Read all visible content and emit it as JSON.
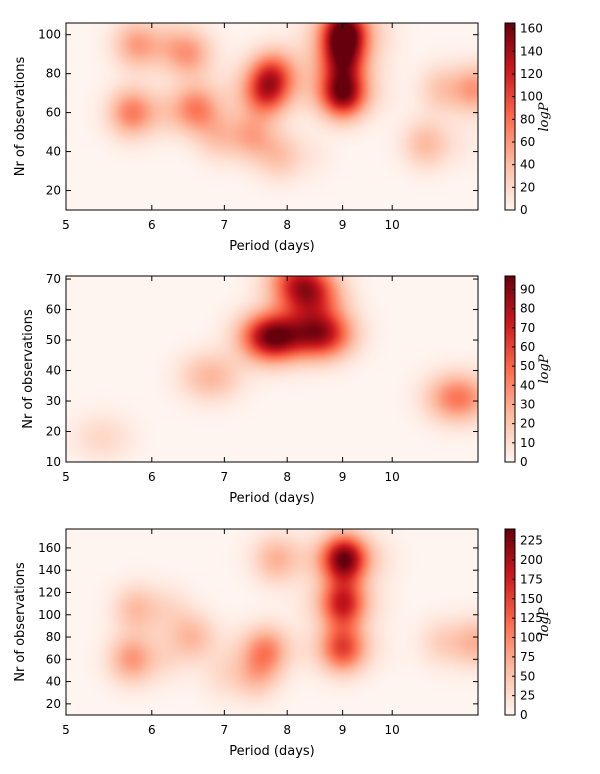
{
  "chart_data": [
    {
      "type": "heatmap",
      "title": "",
      "xlabel": "Period (days)",
      "ylabel": "Nr of observations",
      "x_scale": "log",
      "xlim": [
        5,
        12
      ],
      "ylim": [
        10,
        106
      ],
      "xticks": [
        5,
        6,
        7,
        8,
        9,
        10
      ],
      "yticks": [
        20,
        40,
        60,
        80,
        100
      ],
      "colorbar": {
        "label": "logP",
        "ticks": [
          0,
          20,
          40,
          60,
          80,
          100,
          120,
          140,
          160
        ],
        "range": [
          0,
          165
        ]
      },
      "colormap": [
        "#fff5f0",
        "#fcbba1",
        "#fb6a4a",
        "#cb181d",
        "#67000d"
      ],
      "hotspots": [
        {
          "period": 9.05,
          "obs": 102,
          "value": 165
        },
        {
          "period": 9.0,
          "obs": 70,
          "value": 160
        },
        {
          "period": 9.0,
          "obs": 88,
          "value": 120
        },
        {
          "period": 7.6,
          "obs": 70,
          "value": 95
        },
        {
          "period": 7.8,
          "obs": 80,
          "value": 85
        },
        {
          "period": 5.85,
          "obs": 60,
          "value": 85
        },
        {
          "period": 5.95,
          "obs": 95,
          "value": 75
        },
        {
          "period": 6.6,
          "obs": 62,
          "value": 70
        },
        {
          "period": 7.2,
          "obs": 48,
          "value": 80
        },
        {
          "period": 6.45,
          "obs": 90,
          "value": 55
        },
        {
          "period": 11.6,
          "obs": 72,
          "value": 90
        },
        {
          "period": 10.9,
          "obs": 44,
          "value": 45
        },
        {
          "period": 8.0,
          "obs": 38,
          "value": 40
        }
      ]
    },
    {
      "type": "heatmap",
      "title": "",
      "xlabel": "Period (days)",
      "ylabel": "Nr of observations",
      "x_scale": "log",
      "xlim": [
        5,
        12
      ],
      "ylim": [
        10,
        71
      ],
      "xticks": [
        5,
        6,
        7,
        8,
        9,
        10
      ],
      "yticks": [
        10,
        20,
        30,
        40,
        50,
        60,
        70
      ],
      "colorbar": {
        "label": "logP",
        "ticks": [
          0,
          10,
          20,
          30,
          40,
          50,
          60,
          70,
          80,
          90
        ],
        "range": [
          0,
          97
        ]
      },
      "colormap": [
        "#fff5f0",
        "#fcbba1",
        "#fb6a4a",
        "#cb181d",
        "#67000d"
      ],
      "hotspots": [
        {
          "period": 7.75,
          "obs": 51,
          "value": 95
        },
        {
          "period": 8.6,
          "obs": 52,
          "value": 80
        },
        {
          "period": 8.4,
          "obs": 64,
          "value": 55
        },
        {
          "period": 8.2,
          "obs": 70,
          "value": 50
        },
        {
          "period": 11.5,
          "obs": 31,
          "value": 45
        },
        {
          "period": 6.8,
          "obs": 38,
          "value": 25
        },
        {
          "period": 5.4,
          "obs": 18,
          "value": 12
        }
      ]
    },
    {
      "type": "heatmap",
      "title": "",
      "xlabel": "Period (days)",
      "ylabel": "Nr of observations",
      "x_scale": "log",
      "xlim": [
        5,
        12
      ],
      "ylim": [
        10,
        177
      ],
      "xticks": [
        5,
        6,
        7,
        8,
        9,
        10
      ],
      "yticks": [
        20,
        40,
        60,
        80,
        100,
        120,
        140,
        160
      ],
      "colorbar": {
        "label": "logP",
        "ticks": [
          0,
          25,
          50,
          75,
          100,
          125,
          150,
          175,
          200,
          225
        ],
        "range": [
          0,
          240
        ]
      },
      "colormap": [
        "#fff5f0",
        "#fcbba1",
        "#fb6a4a",
        "#cb181d",
        "#67000d"
      ],
      "hotspots": [
        {
          "period": 9.05,
          "obs": 150,
          "value": 240
        },
        {
          "period": 9.0,
          "obs": 110,
          "value": 180
        },
        {
          "period": 9.0,
          "obs": 70,
          "value": 150
        },
        {
          "period": 7.6,
          "obs": 68,
          "value": 100
        },
        {
          "period": 5.85,
          "obs": 60,
          "value": 100
        },
        {
          "period": 5.95,
          "obs": 105,
          "value": 80
        },
        {
          "period": 6.5,
          "obs": 80,
          "value": 60
        },
        {
          "period": 7.3,
          "obs": 45,
          "value": 75
        },
        {
          "period": 11.6,
          "obs": 75,
          "value": 100
        },
        {
          "period": 7.9,
          "obs": 150,
          "value": 70
        }
      ]
    }
  ]
}
